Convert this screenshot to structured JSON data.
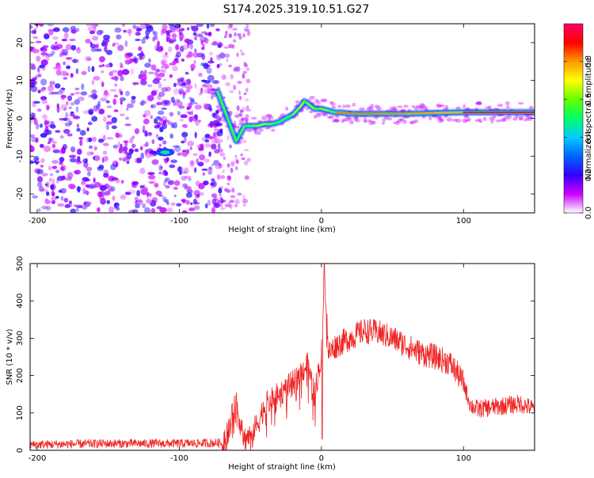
{
  "title": "S174.2025.319.10.51.G27",
  "chart_data": [
    {
      "type": "heatmap",
      "title": "S174.2025.319.10.51.G27",
      "xlabel": "Height of straight line (km)",
      "ylabel": "Frequency (Hz)",
      "xlim": [
        -205,
        150
      ],
      "ylim": [
        -25,
        25
      ],
      "xticks": [
        -200,
        -100,
        0,
        100
      ],
      "yticks": [
        -20,
        -10,
        0,
        10,
        20
      ],
      "ridge": {
        "x": [
          -73,
          -70,
          -67,
          -63,
          -60,
          -57,
          -54,
          -50,
          -45,
          -40,
          -35,
          -30,
          -25,
          -20,
          -15,
          -12,
          -10,
          -5,
          0,
          5,
          10,
          15,
          20,
          40,
          60,
          80,
          100,
          120,
          150
        ],
        "y": [
          7,
          4,
          1,
          -3,
          -6,
          -4,
          -2,
          -2,
          -2,
          -1.5,
          -1.5,
          -1,
          0,
          1,
          3,
          4.5,
          4,
          2.5,
          2.5,
          2,
          1.5,
          1.5,
          1.2,
          1.2,
          1.2,
          1.4,
          1.6,
          1.6,
          1.6
        ]
      },
      "noise_region_x": [
        -205,
        -73
      ],
      "blob": {
        "x": -110,
        "y": -9
      },
      "colorbar": {
        "label": "Normalized spectral amplitude",
        "range": [
          0.0,
          1.0
        ],
        "ticks": [
          "0.0",
          "0.2",
          "0.4",
          "0.6",
          "0.8"
        ],
        "colors": [
          "#ffffff",
          "#cc00ff",
          "#3300ff",
          "#0066ff",
          "#00ccff",
          "#00ff66",
          "#66ff00",
          "#ffff00",
          "#ff9900",
          "#ff0000",
          "#ff0066"
        ]
      }
    },
    {
      "type": "line",
      "xlabel": "Height of straight line (km)",
      "ylabel": "SNR (10 * v/v)",
      "xlim": [
        -205,
        150
      ],
      "ylim": [
        0,
        500
      ],
      "xticks": [
        -200,
        -100,
        0,
        100
      ],
      "yticks": [
        0,
        100,
        200,
        300,
        400,
        500
      ],
      "line_color": "#ee2222",
      "envelope": {
        "x": [
          -205,
          -150,
          -100,
          -70,
          -65,
          -60,
          -55,
          -50,
          -45,
          -40,
          -30,
          -20,
          -10,
          -5,
          0,
          2,
          5,
          10,
          20,
          30,
          40,
          50,
          60,
          70,
          80,
          90,
          95,
          100,
          105,
          110,
          120,
          130,
          140,
          150
        ],
        "y": [
          15,
          18,
          18,
          20,
          60,
          130,
          30,
          40,
          70,
          120,
          150,
          180,
          230,
          150,
          250,
          500,
          260,
          280,
          300,
          320,
          315,
          300,
          280,
          260,
          250,
          235,
          210,
          180,
          120,
          110,
          115,
          120,
          125,
          110
        ]
      },
      "noise_amplitude": 35,
      "spikes": [
        {
          "x": 2,
          "y": 500
        },
        {
          "x": 0.5,
          "y": 30
        }
      ]
    }
  ]
}
